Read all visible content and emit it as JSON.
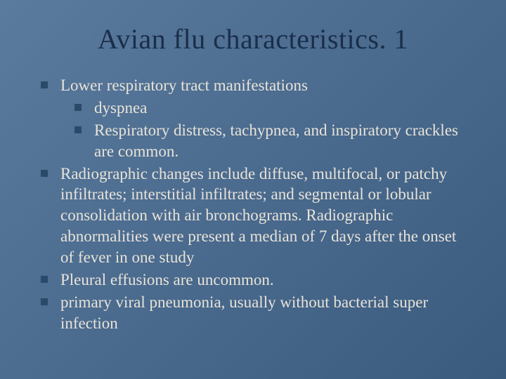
{
  "slide": {
    "title": "Avian flu characteristics. 1",
    "background_gradient": [
      "#5a7a9e",
      "#4a6a8e",
      "#3a5a7e"
    ],
    "title_color": "#1a2e4a",
    "text_color": "#e8e4d8",
    "bullet_color": "#2a4a6a",
    "title_fontsize": 40,
    "body_fontsize": 23,
    "bullets": [
      {
        "level": 0,
        "text": "Lower respiratory tract manifestations"
      },
      {
        "level": 1,
        "text": "dyspnea"
      },
      {
        "level": 1,
        "text": "Respiratory distress, tachypnea, and inspiratory crackles are common."
      },
      {
        "level": 0,
        "text": "Radiographic changes include diffuse, multifocal, or patchy infiltrates; interstitial infiltrates; and segmental or lobular consolidation with air bronchograms. Radiographic abnormalities were present a median of 7 days after the onset of fever in one study"
      },
      {
        "level": 0,
        "text": "Pleural effusions are uncommon."
      },
      {
        "level": 0,
        "text": "primary viral pneumonia, usually without bacterial super infection"
      }
    ]
  }
}
